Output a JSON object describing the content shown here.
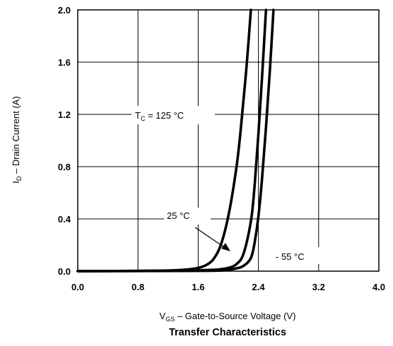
{
  "chart_data": {
    "type": "line",
    "title": "Transfer Characteristics",
    "xlabel": {
      "sym": "V",
      "sub": "GS",
      "rest": " –  Gate-to-Source Voltage (V)"
    },
    "ylabel": {
      "sym": "I",
      "sub": "D",
      "rest": " –  Drain Current (A)"
    },
    "xlim": [
      0.0,
      4.0
    ],
    "ylim": [
      0.0,
      2.0
    ],
    "xticks": [
      0.0,
      0.8,
      1.6,
      2.4,
      3.2,
      4.0
    ],
    "xtick_labels": [
      "0.0",
      "0.8",
      "1.6",
      "2.4",
      "3.2",
      "4.0"
    ],
    "yticks": [
      0.0,
      0.4,
      0.8,
      1.2,
      1.6,
      2.0
    ],
    "ytick_labels": [
      "0.0",
      "0.4",
      "0.8",
      "1.2",
      "1.6",
      "2.0"
    ],
    "grid": true,
    "series": [
      {
        "name": "TC = 125 °C",
        "points": [
          [
            0.0,
            0.0
          ],
          [
            1.0,
            0.003
          ],
          [
            1.3,
            0.007
          ],
          [
            1.5,
            0.015
          ],
          [
            1.6,
            0.025
          ],
          [
            1.7,
            0.045
          ],
          [
            1.8,
            0.09
          ],
          [
            1.9,
            0.2
          ],
          [
            2.0,
            0.42
          ],
          [
            2.1,
            0.76
          ],
          [
            2.15,
            1.0
          ],
          [
            2.2,
            1.3
          ],
          [
            2.25,
            1.62
          ],
          [
            2.3,
            2.0
          ]
        ]
      },
      {
        "name": "25 °C",
        "points": [
          [
            0.0,
            0.0
          ],
          [
            1.2,
            0.002
          ],
          [
            1.5,
            0.005
          ],
          [
            1.8,
            0.01
          ],
          [
            1.9,
            0.015
          ],
          [
            2.0,
            0.025
          ],
          [
            2.1,
            0.05
          ],
          [
            2.2,
            0.13
          ],
          [
            2.3,
            0.38
          ],
          [
            2.35,
            0.66
          ],
          [
            2.4,
            1.05
          ],
          [
            2.45,
            1.5
          ],
          [
            2.5,
            2.0
          ]
        ]
      },
      {
        "name": "-55 °C",
        "points": [
          [
            0.0,
            0.0
          ],
          [
            1.6,
            0.002
          ],
          [
            1.9,
            0.005
          ],
          [
            2.0,
            0.01
          ],
          [
            2.1,
            0.02
          ],
          [
            2.2,
            0.04
          ],
          [
            2.3,
            0.1
          ],
          [
            2.35,
            0.22
          ],
          [
            2.4,
            0.42
          ],
          [
            2.45,
            0.72
          ],
          [
            2.5,
            1.1
          ],
          [
            2.55,
            1.52
          ],
          [
            2.6,
            2.0
          ]
        ]
      }
    ],
    "annotations": {
      "tc_prefix": "T",
      "tc_sub": "C",
      "tc_rest": " = 125 °C",
      "t25": "25 °C",
      "tm55": "- 55 °C"
    }
  }
}
